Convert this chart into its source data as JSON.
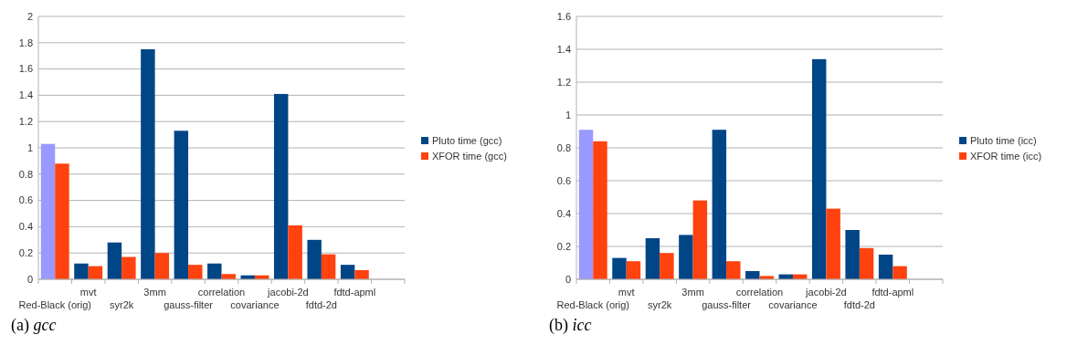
{
  "chart_data": [
    {
      "type": "bar",
      "title": "(a) gcc",
      "categories": [
        "Red-Black (orig)",
        "mvt",
        "syr2k",
        "3mm",
        "gauss-filter",
        "correlation",
        "covariance",
        "jacobi-2d",
        "fdtd-2d",
        "fdtd-apml",
        null
      ],
      "series": [
        {
          "name": "Pluto time (gcc)",
          "color": "#004586",
          "colors": [
            "#9999ff",
            "#004586",
            "#004586",
            "#004586",
            "#004586",
            "#004586",
            "#004586",
            "#004586",
            "#004586",
            "#004586",
            null
          ],
          "values": [
            1.03,
            0.12,
            0.28,
            1.75,
            1.13,
            0.12,
            0.03,
            1.41,
            0.3,
            0.11,
            null
          ]
        },
        {
          "name": "XFOR time (gcc)",
          "color": "#ff420e",
          "values": [
            0.88,
            0.1,
            0.17,
            0.2,
            0.11,
            0.04,
            0.03,
            0.41,
            0.19,
            0.07,
            null
          ]
        }
      ],
      "ylim": [
        0,
        2
      ],
      "yticks": [
        0,
        0.2,
        0.4,
        0.6,
        0.8,
        1,
        1.2,
        1.4,
        1.6,
        1.8,
        2
      ],
      "grid": "y",
      "legend": "right"
    },
    {
      "type": "bar",
      "title": "(b) icc",
      "categories": [
        "Red-Black (orig)",
        "mvt",
        "syr2k",
        "3mm",
        "gauss-filter",
        "correlation",
        "covariance",
        "jacobi-2d",
        "fdtd-2d",
        "fdtd-apml",
        null
      ],
      "series": [
        {
          "name": "Pluto time (icc)",
          "color": "#004586",
          "colors": [
            "#9999ff",
            "#004586",
            "#004586",
            "#004586",
            "#004586",
            "#004586",
            "#004586",
            "#004586",
            "#004586",
            "#004586",
            null
          ],
          "values": [
            0.91,
            0.13,
            0.25,
            0.27,
            0.91,
            0.05,
            0.03,
            1.34,
            0.3,
            0.15,
            null
          ]
        },
        {
          "name": "XFOR time (icc)",
          "color": "#ff420e",
          "values": [
            0.84,
            0.11,
            0.16,
            0.48,
            0.11,
            0.02,
            0.03,
            0.43,
            0.19,
            0.08,
            null
          ]
        }
      ],
      "ylim": [
        0,
        1.6
      ],
      "yticks": [
        0,
        0.2,
        0.4,
        0.6,
        0.8,
        1,
        1.2,
        1.4,
        1.6
      ],
      "grid": "y",
      "legend": "right"
    }
  ]
}
